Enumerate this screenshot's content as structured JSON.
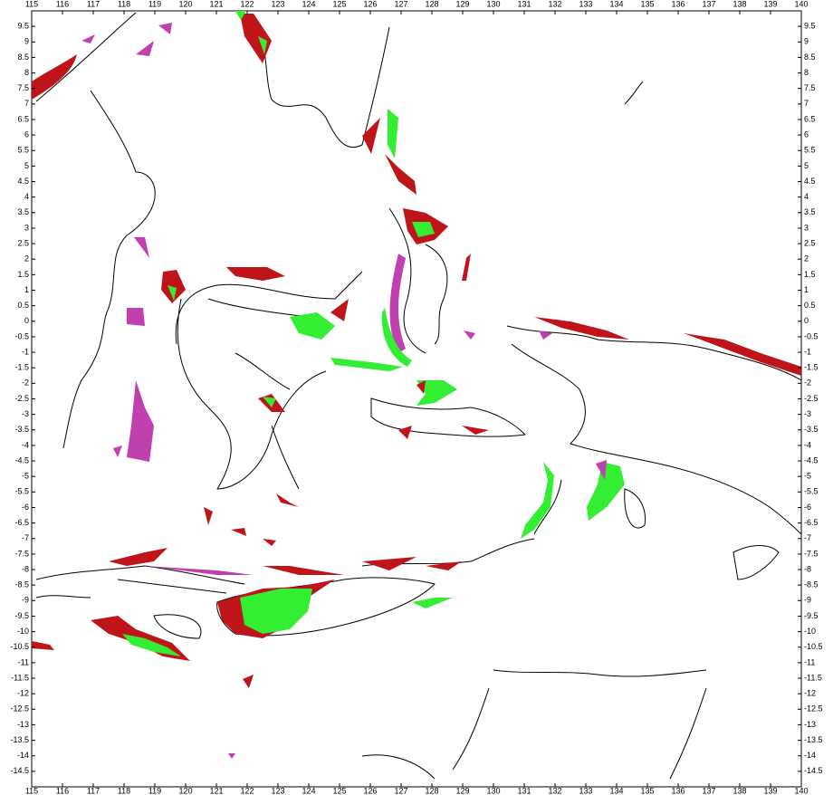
{
  "map": {
    "xlim": [
      115,
      140
    ],
    "ylim": [
      -15,
      10
    ],
    "xticks": [
      115,
      116,
      117,
      118,
      119,
      120,
      121,
      122,
      123,
      124,
      125,
      126,
      127,
      128,
      129,
      130,
      131,
      132,
      133,
      134,
      135,
      136,
      137,
      138,
      139,
      140
    ],
    "yticks": [
      9.5,
      9,
      8.5,
      8,
      7.5,
      7,
      6.5,
      6,
      5.5,
      5,
      4.5,
      4,
      3.5,
      3,
      2.5,
      2,
      1.5,
      1,
      0.5,
      0,
      -0.5,
      -1,
      -1.5,
      -2,
      -2.5,
      -3,
      -3.5,
      -4,
      -4.5,
      -5,
      -5.5,
      -6,
      -6.5,
      -7,
      -7.5,
      -8,
      -8.5,
      -9,
      -9.5,
      -10,
      -10.5,
      -11,
      -11.5,
      -12,
      -12.5,
      -13,
      -13.5,
      -14,
      -14.5
    ]
  }
}
